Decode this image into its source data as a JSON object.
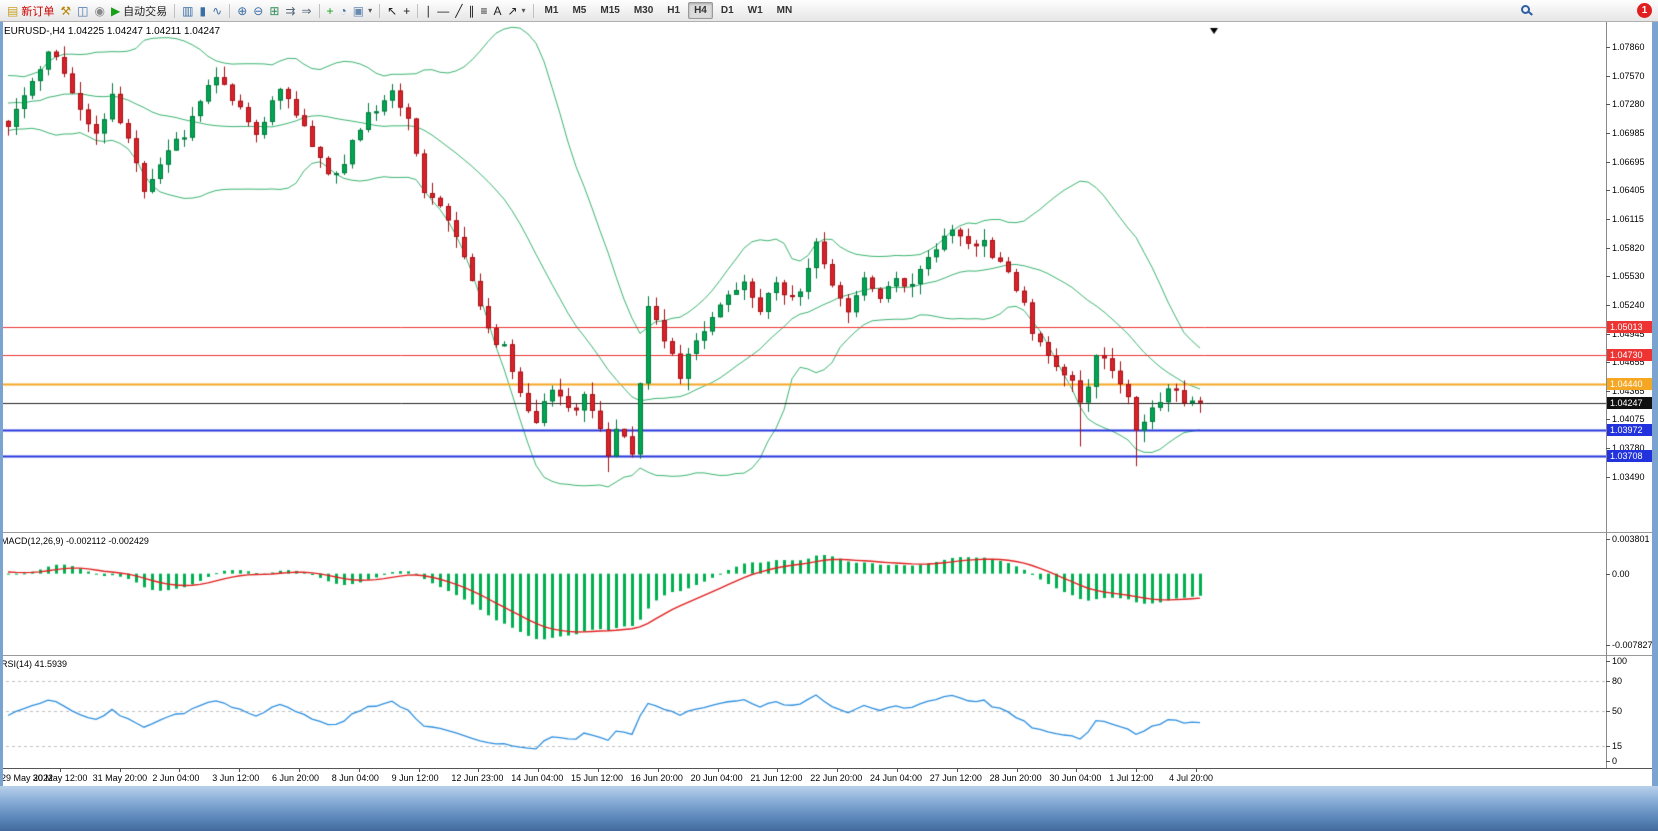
{
  "toolbar": {
    "items": [
      {
        "name": "new-order-button",
        "type": "labelbtn",
        "glyph": "▤",
        "color": "#c8a020",
        "label": "新订单",
        "label_color": "#cc0000"
      },
      {
        "name": "chart-hammer-icon",
        "type": "icon",
        "glyph": "⚒",
        "color": "#b8860b"
      },
      {
        "name": "profile-icon",
        "type": "icon",
        "glyph": "◫",
        "color": "#4a74b0"
      },
      {
        "name": "sound-icon",
        "type": "icon",
        "glyph": "◉",
        "color": "#888888"
      },
      {
        "name": "auto-trading-button",
        "type": "labelbtn",
        "glyph": "▶",
        "color": "#18a018",
        "label": "自动交易",
        "label_color": "#222222"
      },
      {
        "type": "sep"
      },
      {
        "name": "bar-chart-icon",
        "type": "icon",
        "glyph": "▥",
        "color": "#3a6ea5"
      },
      {
        "name": "candlestick-chart-icon",
        "type": "icon",
        "glyph": "▮",
        "color": "#3a6ea5"
      },
      {
        "name": "line-chart-icon",
        "type": "icon",
        "glyph": "∿",
        "color": "#3a6ea5"
      },
      {
        "type": "sep"
      },
      {
        "name": "zoom-in-icon",
        "type": "icon",
        "glyph": "⊕",
        "color": "#3a6ea5"
      },
      {
        "name": "zoom-out-icon",
        "type": "icon",
        "glyph": "⊖",
        "color": "#3a6ea5"
      },
      {
        "name": "tile-windows-icon",
        "type": "icon",
        "glyph": "⊞",
        "color": "#2e8b57"
      },
      {
        "name": "auto-scroll-icon",
        "type": "icon",
        "glyph": "⇉",
        "color": "#556677"
      },
      {
        "name": "chart-shift-icon",
        "type": "icon",
        "glyph": "⇒",
        "color": "#556677"
      },
      {
        "type": "sep"
      },
      {
        "name": "new-chart-icon",
        "type": "icon",
        "glyph": "+",
        "color": "#18a018"
      },
      {
        "name": "period-clock-icon",
        "type": "icon",
        "glyph": "◔",
        "color": "#3a6ea5"
      },
      {
        "name": "template-icon",
        "type": "icon-dd",
        "glyph": "▣",
        "color": "#6a8ab0"
      },
      {
        "type": "sep"
      },
      {
        "name": "cursor-icon",
        "type": "icon",
        "glyph": "↖",
        "color": "#222222"
      },
      {
        "name": "crosshair-icon",
        "type": "icon",
        "glyph": "+",
        "color": "#222222"
      },
      {
        "type": "sep"
      },
      {
        "name": "vertical-line-icon",
        "type": "icon",
        "glyph": "∣",
        "color": "#222222"
      },
      {
        "name": "horizontal-line-icon",
        "type": "icon",
        "glyph": "―",
        "color": "#222222"
      },
      {
        "name": "trendline-icon",
        "type": "icon",
        "glyph": "╱",
        "color": "#222222"
      },
      {
        "name": "channel-icon",
        "type": "icon",
        "glyph": "∥",
        "color": "#222222"
      },
      {
        "name": "fibonacci-icon",
        "type": "icon",
        "glyph": "≡",
        "color": "#222222"
      },
      {
        "name": "text-tool-icon",
        "type": "icon",
        "glyph": "A",
        "color": "#222222"
      },
      {
        "name": "arrows-tool-icon",
        "type": "icon-dd",
        "glyph": "↗",
        "color": "#222222"
      },
      {
        "type": "sep"
      }
    ],
    "timeframes": [
      {
        "label": "M1",
        "active": false
      },
      {
        "label": "M5",
        "active": false
      },
      {
        "label": "M15",
        "active": false
      },
      {
        "label": "M30",
        "active": false
      },
      {
        "label": "H1",
        "active": false
      },
      {
        "label": "H4",
        "active": true
      },
      {
        "label": "D1",
        "active": false
      },
      {
        "label": "W1",
        "active": false
      },
      {
        "label": "MN",
        "active": false
      }
    ],
    "notification_count": "1"
  },
  "chart": {
    "title": "EURUSD-,H4",
    "ohlc": "1.04225 1.04247 1.04211 1.04247",
    "price_axis": [
      "1.07860",
      "1.07570",
      "1.07280",
      "1.06985",
      "1.06695",
      "1.06405",
      "1.06115",
      "1.05820",
      "1.05530",
      "1.05240",
      "1.04945",
      "1.04655",
      "1.04365",
      "1.04075",
      "1.03780",
      "1.03490"
    ],
    "levels": [
      {
        "label": "1.05013",
        "price": 1.05013,
        "color": "#ee3333",
        "line_width": 1
      },
      {
        "label": "1.04730",
        "price": 1.0473,
        "color": "#ee3333",
        "line_width": 1
      },
      {
        "label": "1.04440",
        "price": 1.0444,
        "color": "#f5a623",
        "line_width": 2
      },
      {
        "label": "1.03972",
        "price": 1.03972,
        "color": "#2233dd",
        "line_width": 2
      },
      {
        "label": "1.03708",
        "price": 1.03708,
        "color": "#2233dd",
        "line_width": 2
      }
    ],
    "current_price": {
      "label": "1.04247",
      "price": 1.04247,
      "color": "#111111"
    }
  },
  "macd": {
    "label": "MACD(12,26,9) -0.002112 -0.002429",
    "axis": [
      "0.003801",
      "0.00",
      "-0.007827"
    ],
    "max": 0.003801,
    "min": -0.007827
  },
  "rsi": {
    "label": "RSI(14) 41.5939",
    "axis": [
      "100",
      "80",
      "50",
      "15",
      "0"
    ],
    "axis_values": [
      100,
      80,
      50,
      15,
      0
    ],
    "dashed_levels": [
      80,
      50,
      15
    ],
    "last_value": 41.5939
  },
  "time_axis": [
    "29 May 2022",
    "30 May 12:00",
    "31 May 20:00",
    "2 Jun 04:00",
    "3 Jun 12:00",
    "6 Jun 20:00",
    "8 Jun 04:00",
    "9 Jun 12:00",
    "12 Jun 23:00",
    "14 Jun 04:00",
    "15 Jun 12:00",
    "16 Jun 20:00",
    "20 Jun 04:00",
    "21 Jun 12:00",
    "22 Jun 20:00",
    "24 Jun 04:00",
    "27 Jun 12:00",
    "28 Jun 20:00",
    "30 Jun 04:00",
    "1 Jul 12:00",
    "4 Jul 20:00"
  ],
  "chart_data": {
    "type": "candlestick",
    "symbol": "EURUSD-",
    "timeframe": "H4",
    "candle_count": 150,
    "last_close": 1.04247,
    "price_path_anchors": [
      [
        0,
        1.071
      ],
      [
        3,
        1.0745
      ],
      [
        5,
        1.0785
      ],
      [
        7,
        1.076
      ],
      [
        9,
        1.072
      ],
      [
        11,
        1.07
      ],
      [
        13,
        1.0732
      ],
      [
        15,
        1.069
      ],
      [
        17,
        1.0645
      ],
      [
        19,
        1.0668
      ],
      [
        22,
        1.07
      ],
      [
        26,
        1.0758
      ],
      [
        28,
        1.073
      ],
      [
        31,
        1.07
      ],
      [
        34,
        1.0746
      ],
      [
        36,
        1.072
      ],
      [
        39,
        1.067
      ],
      [
        41,
        1.0652
      ],
      [
        43,
        1.069
      ],
      [
        46,
        1.0726
      ],
      [
        48,
        1.0742
      ],
      [
        50,
        1.0718
      ],
      [
        52,
        1.064
      ],
      [
        54,
        1.0628
      ],
      [
        56,
        1.0598
      ],
      [
        58,
        1.0548
      ],
      [
        60,
        1.0496
      ],
      [
        62,
        1.0478
      ],
      [
        64,
        1.0432
      ],
      [
        66,
        1.0406
      ],
      [
        68,
        1.044
      ],
      [
        70,
        1.0416
      ],
      [
        72,
        1.043
      ],
      [
        74,
        1.0398
      ],
      [
        75,
        1.0372
      ],
      [
        76,
        1.0392
      ],
      [
        78,
        1.0376
      ],
      [
        80,
        1.052
      ],
      [
        82,
        1.0492
      ],
      [
        84,
        1.0446
      ],
      [
        86,
        1.049
      ],
      [
        88,
        1.0514
      ],
      [
        90,
        1.053
      ],
      [
        92,
        1.0546
      ],
      [
        94,
        1.0512
      ],
      [
        96,
        1.055
      ],
      [
        98,
        1.0526
      ],
      [
        100,
        1.0558
      ],
      [
        101,
        1.0588
      ],
      [
        103,
        1.0546
      ],
      [
        105,
        1.052
      ],
      [
        107,
        1.0546
      ],
      [
        109,
        1.053
      ],
      [
        111,
        1.0556
      ],
      [
        113,
        1.054
      ],
      [
        115,
        1.0576
      ],
      [
        118,
        1.0604
      ],
      [
        120,
        1.0582
      ],
      [
        122,
        1.059
      ],
      [
        124,
        1.0566
      ],
      [
        126,
        1.054
      ],
      [
        128,
        1.05
      ],
      [
        130,
        1.0476
      ],
      [
        132,
        1.0456
      ],
      [
        134,
        1.0428
      ],
      [
        135,
        1.0446
      ],
      [
        136,
        1.0476
      ],
      [
        138,
        1.046
      ],
      [
        140,
        1.043
      ],
      [
        141,
        1.0402
      ],
      [
        143,
        1.042
      ],
      [
        145,
        1.0442
      ],
      [
        147,
        1.0426
      ],
      [
        149,
        1.04247
      ]
    ],
    "spike_lows": [
      [
        17,
        1.0632
      ],
      [
        75,
        1.0354
      ],
      [
        134,
        1.038
      ],
      [
        141,
        1.036
      ]
    ],
    "bollinger": {
      "period": 20,
      "deviation": 2
    },
    "colors": {
      "up": "#00a651",
      "up_border": "#007a3d",
      "down": "#d9232a",
      "down_border": "#a51016",
      "bollinger": "#3cb371",
      "macd_hist": "#00b050",
      "macd_signal": "#e02020",
      "rsi_line": "#2e8fdf"
    }
  }
}
